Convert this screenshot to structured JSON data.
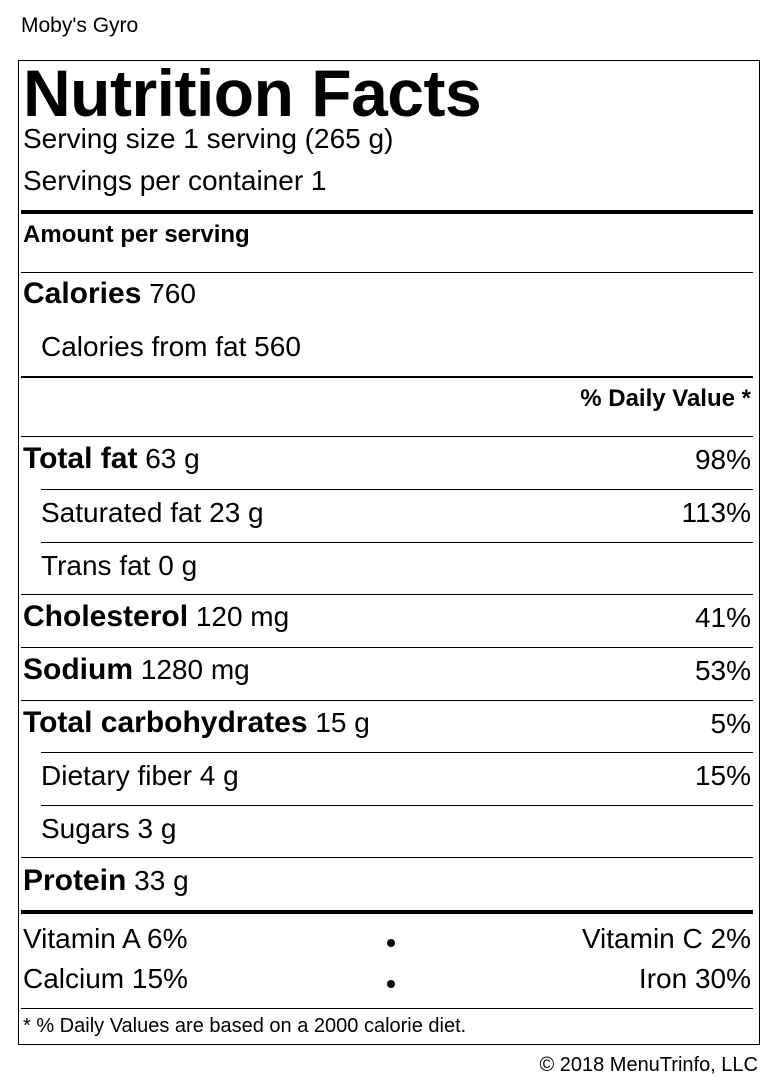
{
  "product_name": "Moby's Gyro",
  "label": {
    "title": "Nutrition Facts",
    "serving_size": "Serving size 1 serving (265 g)",
    "servings_per_container": "Servings per container 1",
    "amount_per_serving": "Amount per serving",
    "calories_label": "Calories",
    "calories_value": "760",
    "calories_from_fat": "Calories from fat 560",
    "daily_value_header": "% Daily Value *",
    "nutrients": [
      {
        "name": "Total fat",
        "amount": "63 g",
        "dv": "98%"
      },
      {
        "name": "Saturated fat",
        "amount": "23 g",
        "dv": "113%"
      },
      {
        "name": "Trans fat",
        "amount": "0 g",
        "dv": ""
      },
      {
        "name": "Cholesterol",
        "amount": "120 mg",
        "dv": "41%"
      },
      {
        "name": "Sodium",
        "amount": "1280 mg",
        "dv": "53%"
      },
      {
        "name": "Total carbohydrates",
        "amount": "15 g",
        "dv": "5%"
      },
      {
        "name": "Dietary fiber",
        "amount": "4 g",
        "dv": "15%"
      },
      {
        "name": "Sugars",
        "amount": "3 g",
        "dv": ""
      },
      {
        "name": "Protein",
        "amount": "33 g",
        "dv": ""
      }
    ],
    "vitamins": {
      "vitamin_a": "Vitamin A 6%",
      "vitamin_c": "Vitamin C 2%",
      "calcium": "Calcium 15%",
      "iron": "Iron 30%"
    },
    "footnote": "* % Daily Values are based on a 2000 calorie diet."
  },
  "copyright": "© 2018 MenuTrinfo, LLC"
}
